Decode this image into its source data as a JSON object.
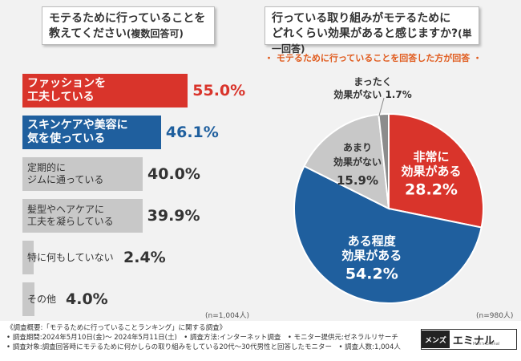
{
  "left_chart": {
    "title_line1": "モテるために行っていることを",
    "title_line2": "教えてください",
    "title_note": "(複数回答可)",
    "n_label": "(n=1,004人)"
  },
  "right_chart": {
    "title_line1": "行っている取り組みがモテるために",
    "title_line2": "どれくらい効果があると感じますか?",
    "title_note": "(単一回答)",
    "subnote": "・ モテるために行っていることを回答した方が回答 ・",
    "n_label": "(n=980人)"
  },
  "chart_data": [
    {
      "type": "bar",
      "orientation": "horizontal",
      "title": "モテるために行っていることを教えてください(複数回答可)",
      "unit": "%",
      "bars": [
        {
          "label_line1": "ファッションを",
          "label_line2": "工夫している",
          "value": 55.0,
          "display": "55.0%",
          "color": "#d9342b"
        },
        {
          "label_line1": "スキンケアや美容に",
          "label_line2": "気を使っている",
          "value": 46.1,
          "display": "46.1%",
          "color": "#1f5f9e"
        },
        {
          "label_line1": "定期的に",
          "label_line2": "ジムに通っている",
          "value": 40.0,
          "display": "40.0%",
          "color": "#c8c8c8"
        },
        {
          "label_line1": "髪型やヘアケアに",
          "label_line2": "工夫を凝らしている",
          "value": 39.9,
          "display": "39.9%",
          "color": "#c8c8c8"
        },
        {
          "label_line1": "特に何もしていない",
          "label_line2": "",
          "value": 2.4,
          "display": "2.4%",
          "color": "#c8c8c8"
        },
        {
          "label_line1": "その他",
          "label_line2": "",
          "value": 4.0,
          "display": "4.0%",
          "color": "#c8c8c8"
        }
      ]
    },
    {
      "type": "pie",
      "title": "行っている取り組みがモテるためにどれくらい効果があると感じますか?(単一回答)",
      "slices": [
        {
          "label_line1": "非常に",
          "label_line2": "効果がある",
          "value": 28.2,
          "display": "28.2%",
          "color": "#d9342b"
        },
        {
          "label_line1": "ある程度",
          "label_line2": "効果がある",
          "value": 54.2,
          "display": "54.2%",
          "color": "#1f5f9e"
        },
        {
          "label_line1": "あまり",
          "label_line2": "効果がない",
          "value": 15.9,
          "display": "15.9%",
          "color": "#c8c8c8"
        },
        {
          "label_line1": "まったく",
          "label_line2": "効果がない",
          "value": 1.7,
          "display": "1.7%",
          "color": "#8c8c8c"
        }
      ]
    }
  ],
  "footer": {
    "line1": "《調査概要:「モテるために行っていることランキング」に関する調査》",
    "line2": "• 調査期間:2024年5月10日(金)〜 2024年5月11日(土)　• 調査方法:インターネット調査　• モニター提供元:ゼネラルリサーチ",
    "line3": "• 調査対象:調査回答時にモテるために何かしらの取り組みをしている20代〜30代男性と回答したモニター　• 調査人数:1,004人"
  },
  "logo": {
    "mark": "メンズ",
    "name": "エミナル",
    "sub": "Men's Eminal"
  }
}
